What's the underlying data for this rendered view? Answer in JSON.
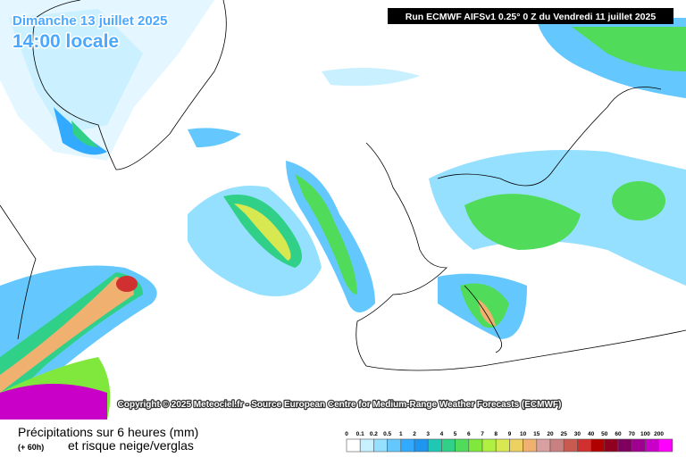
{
  "header": {
    "date": "Dimanche 13 juillet 2025",
    "time": "14:00 locale",
    "run": "Run ECMWF AIFSv1 0.25° 0 Z du Vendredi 11 juillet 2025"
  },
  "copyright": "Copyright © 2025 Meteociel.fr - Source European Centre for Medium-Range Weather Forecasts (ECMWF)",
  "legend": {
    "title": "Précipitations sur 6 heures (mm)",
    "lead": "(+ 60h)",
    "subtitle": "et risque neige/verglas",
    "items": [
      {
        "label": "0",
        "color": "#ffffff"
      },
      {
        "label": "0.1",
        "color": "#c8f0ff"
      },
      {
        "label": "0.2",
        "color": "#96e0ff"
      },
      {
        "label": "0.5",
        "color": "#64c8ff"
      },
      {
        "label": "1",
        "color": "#32aaff"
      },
      {
        "label": "2",
        "color": "#1e96f0"
      },
      {
        "label": "3",
        "color": "#20c8b4"
      },
      {
        "label": "4",
        "color": "#30d088"
      },
      {
        "label": "5",
        "color": "#50dc5a"
      },
      {
        "label": "6",
        "color": "#80e83c"
      },
      {
        "label": "7",
        "color": "#b0f040"
      },
      {
        "label": "8",
        "color": "#d8e850"
      },
      {
        "label": "9",
        "color": "#ecd060"
      },
      {
        "label": "10",
        "color": "#f0b070"
      },
      {
        "label": "15",
        "color": "#d8a0a0"
      },
      {
        "label": "20",
        "color": "#c88080"
      },
      {
        "label": "25",
        "color": "#c85a50"
      },
      {
        "label": "30",
        "color": "#d03030"
      },
      {
        "label": "40",
        "color": "#b00000"
      },
      {
        "label": "50",
        "color": "#900020"
      },
      {
        "label": "60",
        "color": "#800060"
      },
      {
        "label": "70",
        "color": "#a00090"
      },
      {
        "label": "100",
        "color": "#c800c8"
      },
      {
        "label": "200",
        "color": "#ff00ff"
      }
    ]
  }
}
